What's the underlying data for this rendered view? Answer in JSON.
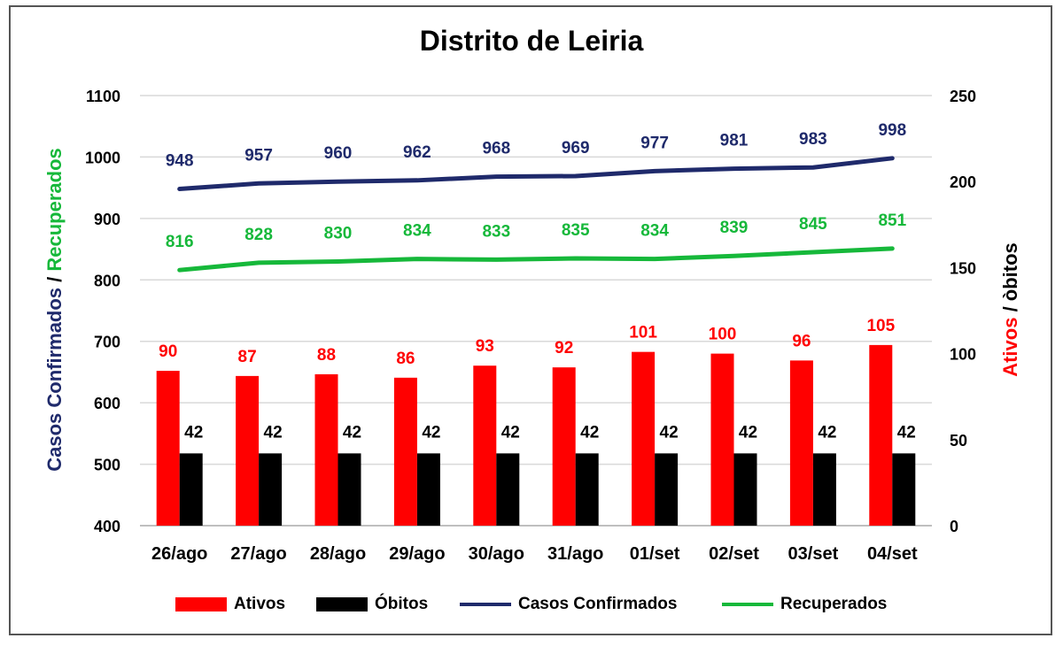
{
  "chart_data": {
    "type": "bar+line",
    "title": "Distrito de Leiria",
    "categories": [
      "26/ago",
      "27/ago",
      "28/ago",
      "29/ago",
      "30/ago",
      "31/ago",
      "01/set",
      "02/set",
      "03/set",
      "04/set"
    ],
    "left_axis": {
      "title_part1": "Casos Confirmados",
      "title_sep": " / ",
      "title_part2": "Recuperados",
      "range": [
        400,
        1100
      ],
      "ticks": [
        400,
        500,
        600,
        700,
        800,
        900,
        1000,
        1100
      ]
    },
    "right_axis": {
      "title_part1": "Ativos",
      "title_sep": " / ",
      "title_part2": "òbitos",
      "range": [
        0,
        250
      ],
      "ticks": [
        0,
        50,
        100,
        150,
        200,
        250
      ]
    },
    "grid": true,
    "legend_position": "bottom",
    "series": [
      {
        "name": "Ativos",
        "kind": "bar",
        "axis": "right",
        "color": "#ff0000",
        "label_color": "#ff0000",
        "values": [
          90,
          87,
          88,
          86,
          93,
          92,
          101,
          100,
          96,
          105
        ]
      },
      {
        "name": "Óbitos",
        "kind": "bar",
        "axis": "right",
        "color": "#000000",
        "label_color": "#000000",
        "values": [
          42,
          42,
          42,
          42,
          42,
          42,
          42,
          42,
          42,
          42
        ]
      },
      {
        "name": "Casos Confirmados",
        "kind": "line",
        "axis": "left",
        "color": "#1f2a6b",
        "label_color": "#1f2a6b",
        "values": [
          948,
          957,
          960,
          962,
          968,
          969,
          977,
          981,
          983,
          998
        ]
      },
      {
        "name": "Recuperados",
        "kind": "line",
        "axis": "left",
        "color": "#16b83a",
        "label_color": "#16b83a",
        "values": [
          816,
          828,
          830,
          834,
          833,
          835,
          834,
          839,
          845,
          851
        ]
      }
    ]
  },
  "colors": {
    "left_title_part1": "#1f2a6b",
    "left_title_part2": "#16b83a",
    "right_title_part1": "#ff0000",
    "right_title_part2": "#000000",
    "gridline": "#d9d9d9"
  }
}
